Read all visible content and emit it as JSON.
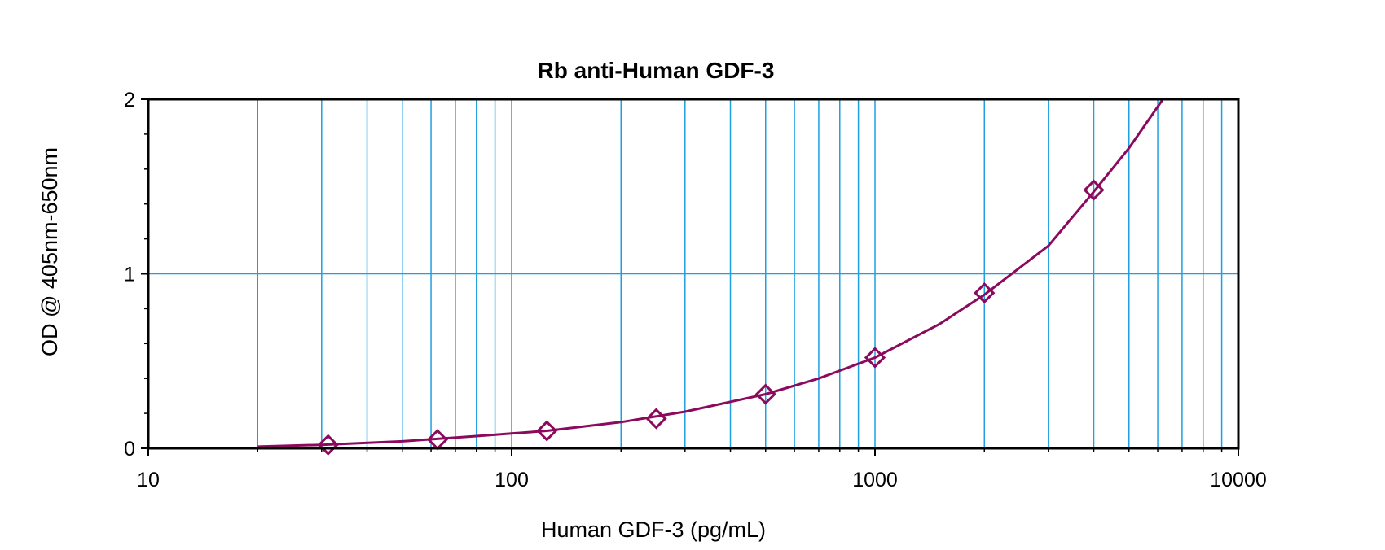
{
  "chart_data": {
    "type": "scatter",
    "title": "Rb anti-Human GDF-3",
    "xlabel": "Human GDF-3 (pg/mL)",
    "ylabel": "OD @ 405nm-650nm",
    "x_scale": "log",
    "xlim": [
      10,
      10000
    ],
    "ylim": [
      0,
      2
    ],
    "x_ticks": [
      10,
      100,
      1000,
      10000
    ],
    "x_tick_labels": [
      "10",
      "100",
      "1000",
      "10000"
    ],
    "y_ticks": [
      0,
      1,
      2
    ],
    "y_tick_labels": [
      "0",
      "1",
      "2"
    ],
    "grid": true,
    "legend": "none",
    "series": [
      {
        "marker": "diamond",
        "color": "#8b0a5e",
        "x": [
          31.25,
          62.5,
          125,
          250,
          500,
          1000,
          2000,
          4000
        ],
        "y": [
          0.02,
          0.05,
          0.1,
          0.17,
          0.31,
          0.52,
          0.89,
          1.48
        ]
      }
    ],
    "fit_curve": {
      "color": "#8b0a5e",
      "x": [
        20,
        30,
        50,
        80,
        125,
        200,
        300,
        500,
        700,
        1000,
        1500,
        2000,
        3000,
        4000,
        5000,
        6200
      ],
      "y": [
        0.01,
        0.02,
        0.04,
        0.07,
        0.1,
        0.15,
        0.21,
        0.31,
        0.4,
        0.52,
        0.71,
        0.88,
        1.16,
        1.47,
        1.72,
        2.0
      ]
    },
    "grid_color": "#1ea0e0"
  }
}
